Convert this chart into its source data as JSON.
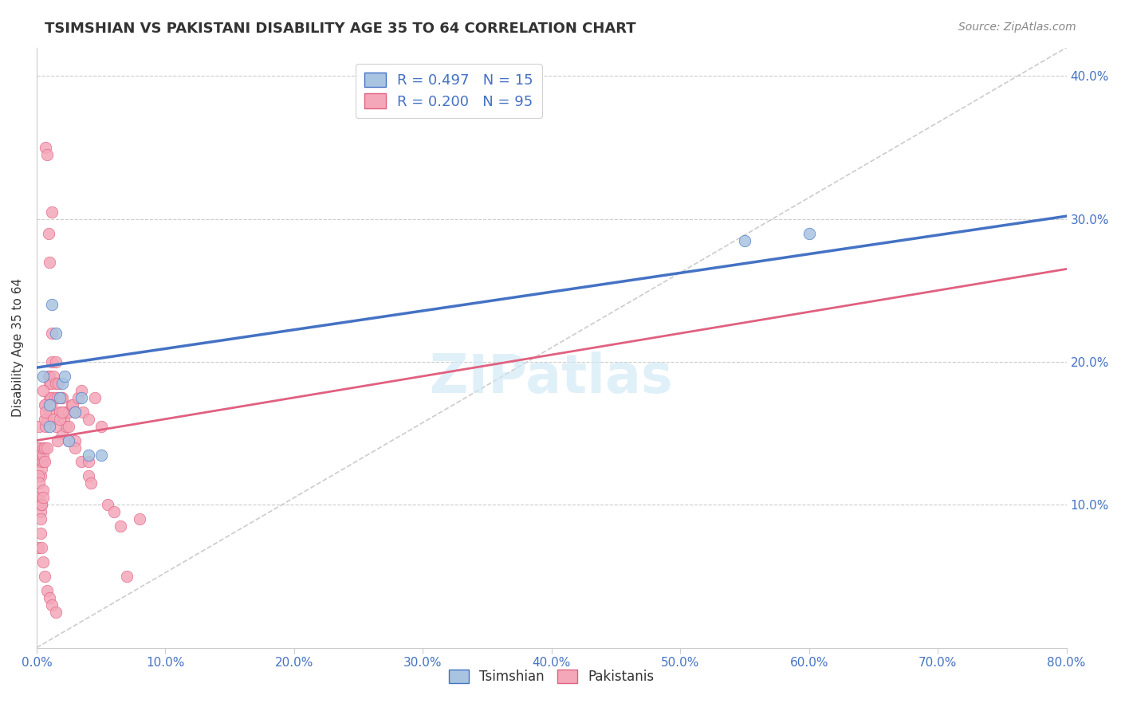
{
  "title": "TSIMSHIAN VS PAKISTANI DISABILITY AGE 35 TO 64 CORRELATION CHART",
  "source": "Source: ZipAtlas.com",
  "ylabel": "Disability Age 35 to 64",
  "xlim": [
    0.0,
    0.8
  ],
  "ylim": [
    0.0,
    0.42
  ],
  "background_color": "#ffffff",
  "grid_color": "#cccccc",
  "tsimshian_R": 0.497,
  "tsimshian_N": 15,
  "pakistani_R": 0.2,
  "pakistani_N": 95,
  "tsimshian_color": "#a8c4e0",
  "tsimshian_line_color": "#4472c4",
  "pakistani_color": "#f4a7b9",
  "pakistani_line_color": "#e06080",
  "diagonal_color": "#cccccc",
  "tsimshian_x": [
    0.005,
    0.01,
    0.01,
    0.012,
    0.015,
    0.018,
    0.02,
    0.022,
    0.025,
    0.03,
    0.035,
    0.04,
    0.05,
    0.55,
    0.6
  ],
  "tsimshian_y": [
    0.19,
    0.155,
    0.17,
    0.24,
    0.22,
    0.175,
    0.185,
    0.19,
    0.145,
    0.165,
    0.175,
    0.135,
    0.135,
    0.285,
    0.29
  ],
  "pakistani_x": [
    0.001,
    0.001,
    0.002,
    0.002,
    0.003,
    0.003,
    0.004,
    0.004,
    0.005,
    0.005,
    0.005,
    0.006,
    0.006,
    0.007,
    0.007,
    0.008,
    0.008,
    0.009,
    0.009,
    0.01,
    0.01,
    0.01,
    0.011,
    0.011,
    0.012,
    0.012,
    0.013,
    0.014,
    0.015,
    0.015,
    0.016,
    0.017,
    0.018,
    0.019,
    0.02,
    0.02,
    0.021,
    0.022,
    0.023,
    0.025,
    0.025,
    0.027,
    0.028,
    0.03,
    0.03,
    0.032,
    0.035,
    0.036,
    0.04,
    0.04,
    0.042,
    0.045,
    0.05,
    0.055,
    0.06,
    0.065,
    0.07,
    0.08,
    0.001,
    0.001,
    0.002,
    0.002,
    0.003,
    0.003,
    0.004,
    0.004,
    0.005,
    0.005,
    0.006,
    0.006,
    0.007,
    0.007,
    0.008,
    0.009,
    0.01,
    0.011,
    0.012,
    0.013,
    0.015,
    0.016,
    0.018,
    0.02,
    0.025,
    0.03,
    0.035,
    0.005,
    0.04,
    0.003,
    0.004,
    0.005,
    0.006,
    0.008,
    0.01,
    0.012,
    0.015
  ],
  "pakistani_y": [
    0.14,
    0.13,
    0.155,
    0.14,
    0.135,
    0.12,
    0.13,
    0.125,
    0.13,
    0.135,
    0.14,
    0.13,
    0.14,
    0.17,
    0.155,
    0.14,
    0.16,
    0.165,
    0.19,
    0.175,
    0.19,
    0.185,
    0.175,
    0.185,
    0.2,
    0.22,
    0.19,
    0.175,
    0.2,
    0.185,
    0.175,
    0.185,
    0.165,
    0.175,
    0.15,
    0.175,
    0.16,
    0.165,
    0.155,
    0.165,
    0.145,
    0.17,
    0.17,
    0.165,
    0.145,
    0.175,
    0.18,
    0.165,
    0.16,
    0.12,
    0.115,
    0.175,
    0.155,
    0.1,
    0.095,
    0.085,
    0.05,
    0.09,
    0.12,
    0.07,
    0.115,
    0.105,
    0.095,
    0.09,
    0.1,
    0.1,
    0.11,
    0.105,
    0.17,
    0.16,
    0.165,
    0.35,
    0.345,
    0.29,
    0.27,
    0.17,
    0.305,
    0.16,
    0.155,
    0.145,
    0.16,
    0.165,
    0.155,
    0.14,
    0.13,
    0.18,
    0.13,
    0.08,
    0.07,
    0.06,
    0.05,
    0.04,
    0.035,
    0.03,
    0.025
  ],
  "tsimshian_line_x": [
    0.0,
    0.8
  ],
  "tsimshian_line_y": [
    0.196,
    0.302
  ],
  "pakistani_line_x": [
    0.0,
    0.8
  ],
  "pakistani_line_y": [
    0.145,
    0.265
  ],
  "diagonal_line_x": [
    0.0,
    0.8
  ],
  "diagonal_line_y": [
    0.0,
    0.42
  ]
}
